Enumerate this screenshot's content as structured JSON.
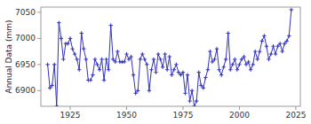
{
  "chart_data": {
    "type": "line",
    "ylabel": "Annual Data (mm)",
    "color": "#3333bb",
    "marker": "plus",
    "grid": false,
    "xlim": [
      1912,
      2027
    ],
    "ylim": [
      6870,
      7060
    ],
    "xticks": [
      1925,
      1950,
      1975,
      2000,
      2025
    ],
    "yticks": [
      6900,
      6950,
      7000,
      7050
    ],
    "x": [
      1915,
      1916,
      1917,
      1918,
      1919,
      1920,
      1921,
      1922,
      1923,
      1924,
      1925,
      1926,
      1927,
      1928,
      1929,
      1930,
      1931,
      1932,
      1933,
      1934,
      1935,
      1936,
      1937,
      1938,
      1939,
      1940,
      1941,
      1942,
      1943,
      1944,
      1945,
      1946,
      1947,
      1948,
      1949,
      1950,
      1951,
      1952,
      1953,
      1954,
      1955,
      1956,
      1957,
      1958,
      1959,
      1960,
      1961,
      1962,
      1963,
      1964,
      1965,
      1966,
      1967,
      1968,
      1969,
      1970,
      1971,
      1972,
      1973,
      1974,
      1975,
      1976,
      1977,
      1978,
      1979,
      1980,
      1981,
      1982,
      1983,
      1984,
      1985,
      1986,
      1987,
      1988,
      1989,
      1990,
      1991,
      1992,
      1993,
      1994,
      1995,
      1996,
      1997,
      1998,
      1999,
      2000,
      2001,
      2002,
      2003,
      2004,
      2005,
      2006,
      2007,
      2008,
      2009,
      2010,
      2011,
      2012,
      2013,
      2014,
      2015,
      2016,
      2017,
      2018,
      2019,
      2020,
      2021,
      2022,
      2023
    ],
    "values": [
      6950,
      6905,
      6910,
      6950,
      6870,
      7030,
      7000,
      6960,
      6990,
      6990,
      7000,
      6980,
      6970,
      6960,
      6940,
      7010,
      6980,
      6960,
      6920,
      6920,
      6930,
      6960,
      6950,
      6940,
      6960,
      6920,
      6960,
      6940,
      7025,
      6960,
      6955,
      6975,
      6955,
      6955,
      6955,
      6970,
      6960,
      6965,
      6930,
      6895,
      6900,
      6960,
      6970,
      6960,
      6950,
      6900,
      6940,
      6960,
      6935,
      6970,
      6960,
      6945,
      6970,
      6940,
      6965,
      6930,
      6940,
      6950,
      6935,
      6930,
      6935,
      6895,
      6930,
      6880,
      6900,
      6870,
      6880,
      6935,
      6910,
      6905,
      6925,
      6940,
      6975,
      6955,
      6960,
      6980,
      6940,
      6930,
      6945,
      6960,
      7010,
      6940,
      6950,
      6960,
      6940,
      6950,
      6960,
      6965,
      6950,
      6955,
      6940,
      6950,
      6975,
      6960,
      6975,
      6995,
      7005,
      6985,
      6960,
      6970,
      6985,
      6970,
      6985,
      6990,
      6975,
      6990,
      6995,
      7005,
      7055
    ]
  }
}
